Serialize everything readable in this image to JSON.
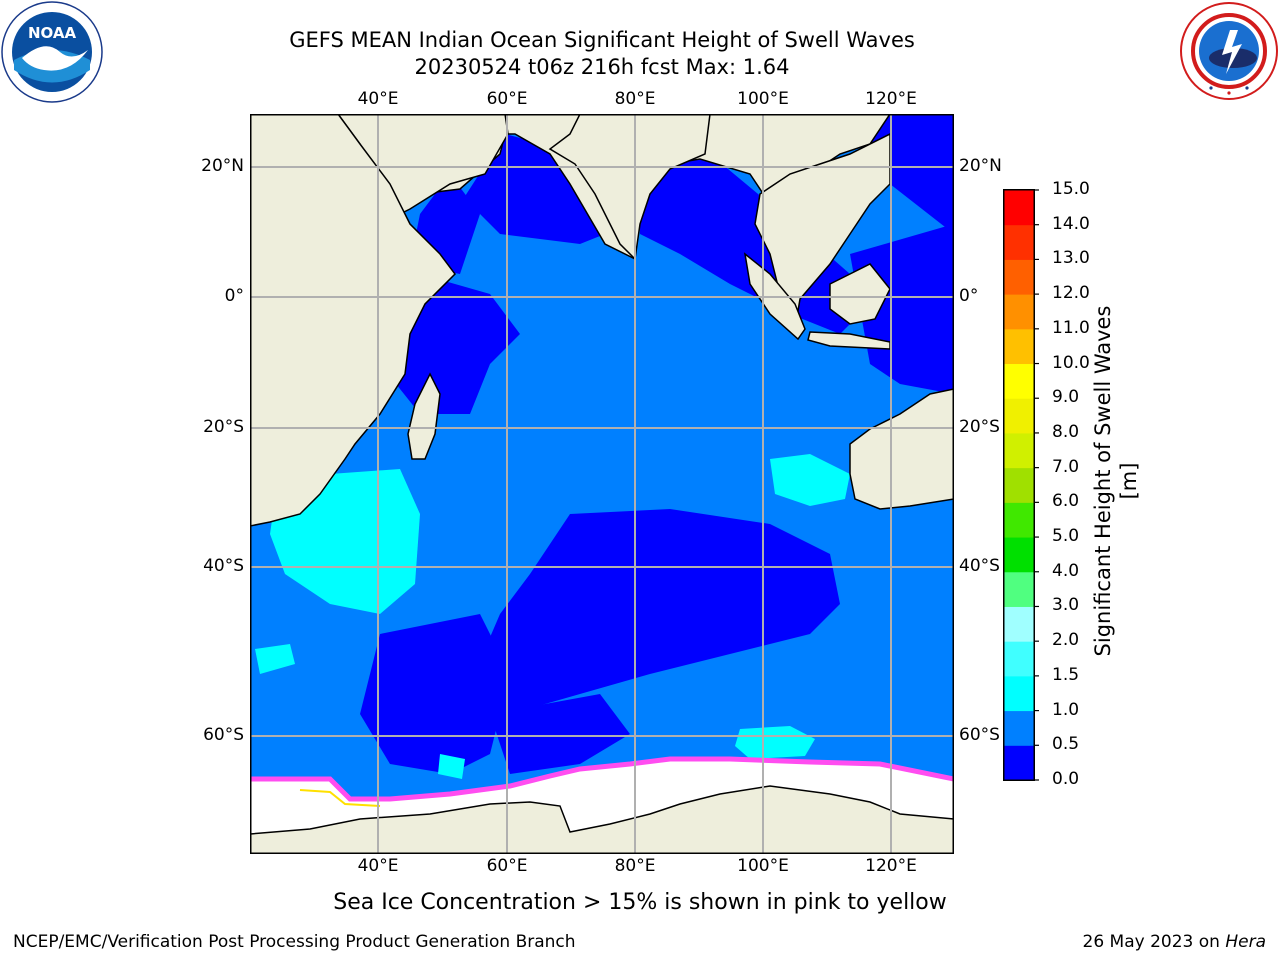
{
  "header": {
    "title_line1": "GEFS MEAN Indian Ocean Significant Height of Swell Waves",
    "title_line2": "20230524 t06z 216h fcst   Max: 1.64"
  },
  "logos": {
    "noaa": "NOAA",
    "noaa_ring": "NATIONAL OCEANIC AND ATMOSPHERIC ADMINISTRATION · U.S. DEPARTMENT OF COMMERCE",
    "nws_ring": "NATIONAL WEATHER SERVICE"
  },
  "map": {
    "lon_labels": [
      "40°E",
      "60°E",
      "80°E",
      "100°E",
      "120°E"
    ],
    "lat_labels": [
      "20°N",
      "0°",
      "20°S",
      "40°S",
      "60°S"
    ],
    "colors": {
      "ocean_low": "#0000ff",
      "ocean_mid": "#0080ff",
      "ocean_high": "#00ffff",
      "land": "#eeeedc",
      "ice": "#ffffff",
      "ice_edge": "#ff4df0",
      "grid": "#b0b0b0"
    }
  },
  "colorbar": {
    "label": "Significant Height of Swell Waves [m]",
    "ticks": [
      "0.0",
      "0.5",
      "1.0",
      "1.5",
      "2.0",
      "3.0",
      "4.0",
      "5.0",
      "6.0",
      "7.0",
      "8.0",
      "9.0",
      "10.0",
      "11.0",
      "12.0",
      "13.0",
      "14.0",
      "15.0"
    ],
    "colors": [
      "#0000ff",
      "#0080ff",
      "#00ffff",
      "#40ffff",
      "#a0ffff",
      "#50ff80",
      "#00e000",
      "#40e800",
      "#a0e000",
      "#d0f000",
      "#f0f000",
      "#ffff00",
      "#ffc000",
      "#ff9000",
      "#ff6000",
      "#ff3000",
      "#ff0000"
    ]
  },
  "footer": {
    "note": "Sea Ice Concentration > 15% is shown in pink to yellow",
    "credit": "NCEP/EMC/Verification Post Processing Product Generation Branch",
    "date": "26 May 2023 on ",
    "machine": "Hera"
  }
}
